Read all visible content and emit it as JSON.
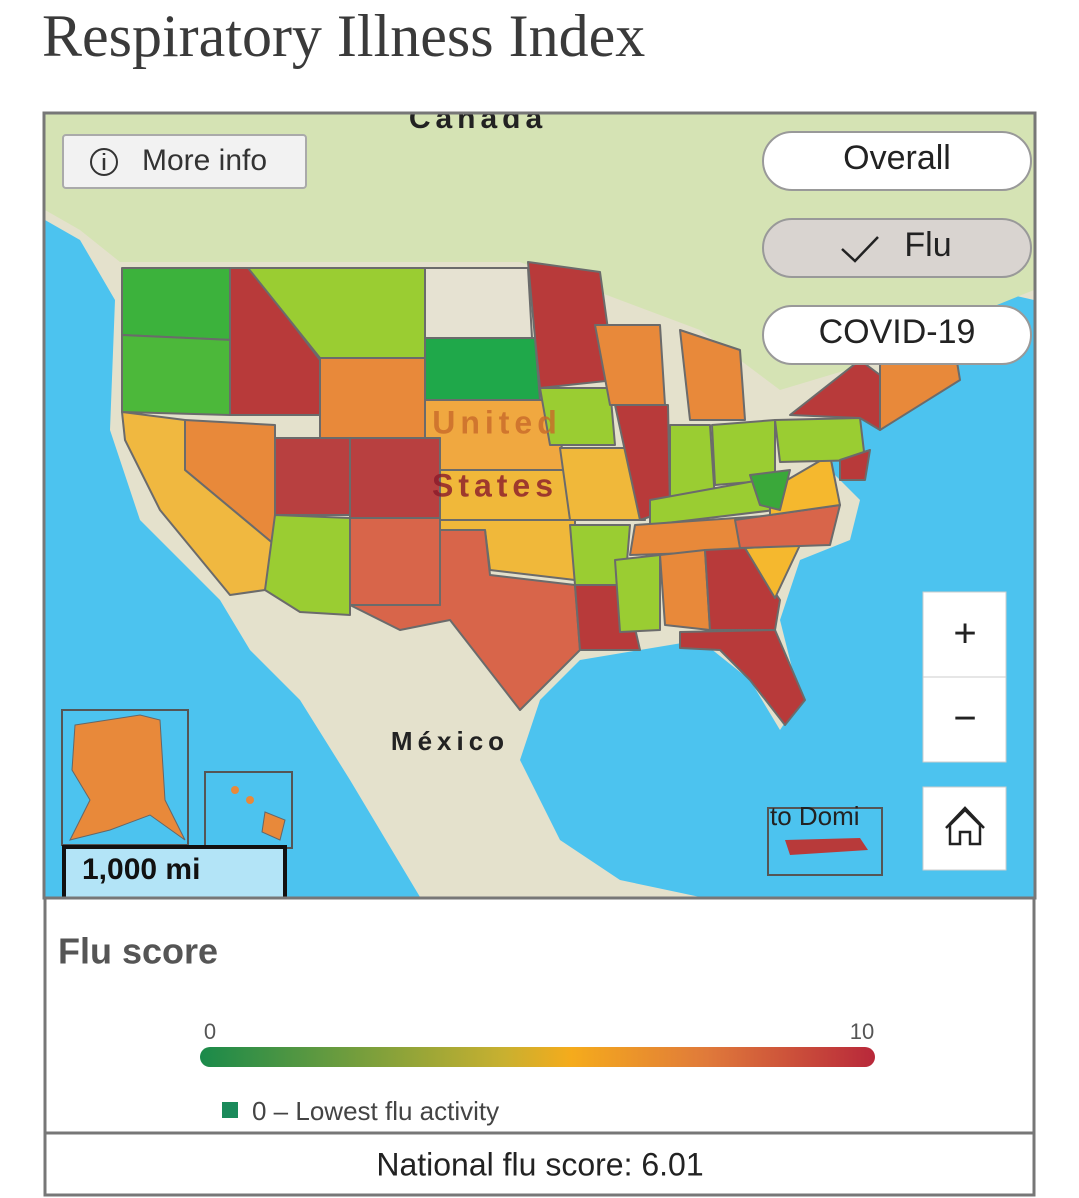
{
  "header": {
    "title": "Respiratory Illness Index"
  },
  "map": {
    "more_info": "More info",
    "layers": [
      "Overall",
      "Flu",
      "COVID-19"
    ],
    "selected_layer": 1,
    "country_labels": [
      "Canada",
      "United",
      "States",
      "México"
    ],
    "inset_label": "to Domi",
    "scale": "1,000 mi",
    "zoom_in": "+",
    "zoom_out": "−"
  },
  "legend": {
    "title": "Flu score",
    "min": 0,
    "max": 10,
    "items": [
      "0 – Lowest flu activity"
    ]
  },
  "footer": {
    "national_score": "National flu score: 6.01"
  }
}
